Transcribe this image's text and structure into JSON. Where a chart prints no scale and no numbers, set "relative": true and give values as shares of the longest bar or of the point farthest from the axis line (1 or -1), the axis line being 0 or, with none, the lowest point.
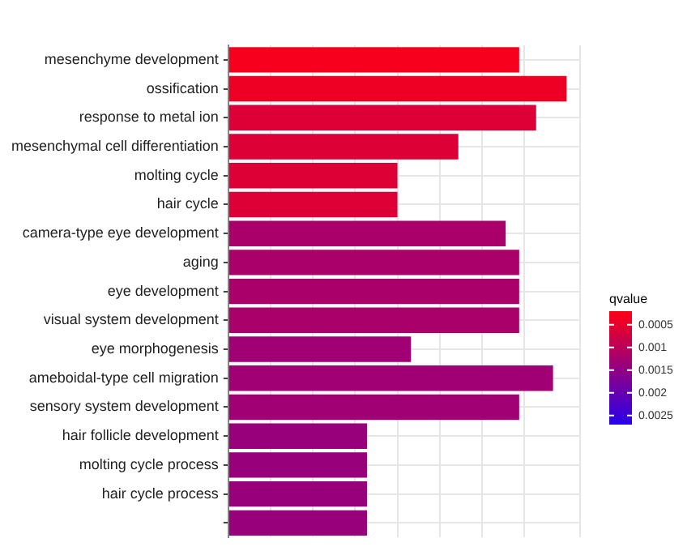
{
  "chart_data": {
    "type": "bar",
    "orientation": "horizontal",
    "relative": true,
    "grid": true,
    "clabel": "qvalue",
    "categories": [
      "mesenchyme development",
      "ossification",
      "response to metal ion",
      "mesenchymal cell differentiation",
      "molting cycle",
      "hair cycle",
      "camera-type eye development",
      "aging",
      "eye development",
      "visual system development",
      "eye morphogenesis",
      "ameboidal-type cell migration",
      "sensory system development",
      "hair follicle development",
      "molting cycle process",
      "hair cycle process",
      null
    ],
    "values": [
      0.86,
      1,
      0.91,
      0.68,
      0.5,
      0.5,
      0.82,
      0.86,
      0.86,
      0.86,
      0.54,
      0.96,
      0.86,
      0.41,
      0.41,
      0.41,
      0.41
    ],
    "cvalues": [
      0.0003,
      0.0004,
      0.0006,
      0.0006,
      0.0006,
      0.0006,
      0.0012,
      0.0012,
      0.0012,
      0.0012,
      0.0013,
      0.0013,
      0.0013,
      0.0014,
      0.0014,
      0.0014,
      0.0014
    ],
    "clim": [
      0.0002,
      0.0027
    ],
    "cticks": [
      0.0005,
      0.001,
      0.0015,
      0.002,
      0.0025
    ]
  }
}
